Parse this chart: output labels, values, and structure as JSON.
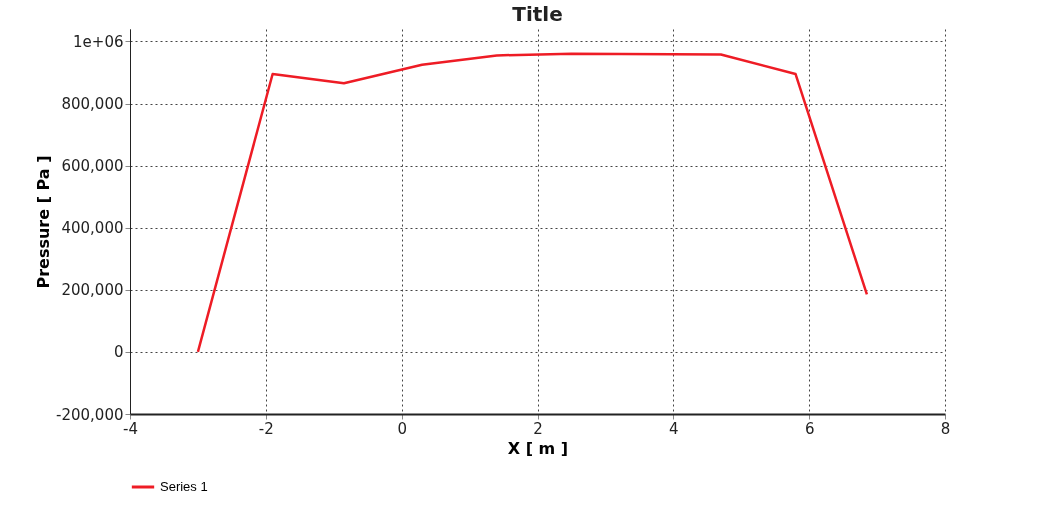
{
  "chart_data": {
    "type": "line",
    "title": "Title",
    "xlabel": "X [ m ]",
    "ylabel": "Pressure [ Pa ]",
    "x": [
      -3,
      -1.9,
      -0.85,
      0.3,
      1.4,
      2.5,
      4.7,
      5.8,
      6.85
    ],
    "series": [
      {
        "name": "Series 1",
        "color": "#ee1c25",
        "values": [
          0,
          895000,
          865000,
          925000,
          955000,
          960000,
          958000,
          895000,
          185000
        ]
      }
    ],
    "xlim": [
      -4,
      8
    ],
    "xticks": [
      {
        "value": -4,
        "label": "-4"
      },
      {
        "value": -2,
        "label": "-2"
      },
      0,
      2,
      4,
      6,
      8
    ],
    "ylim": [
      -200000,
      1040000
    ],
    "yticks": [
      {
        "value": -200000,
        "label": "-200,000"
      },
      0,
      {
        "value": 200000,
        "label": "200,000"
      },
      {
        "value": 400000,
        "label": "400,000"
      },
      {
        "value": 600000,
        "label": "600,000"
      },
      {
        "value": 800000,
        "label": "800,000"
      },
      {
        "value": 1000000,
        "label": "1e+06"
      }
    ],
    "grid": true,
    "legend": "bottom",
    "marker": "none",
    "line_style": "solid"
  }
}
